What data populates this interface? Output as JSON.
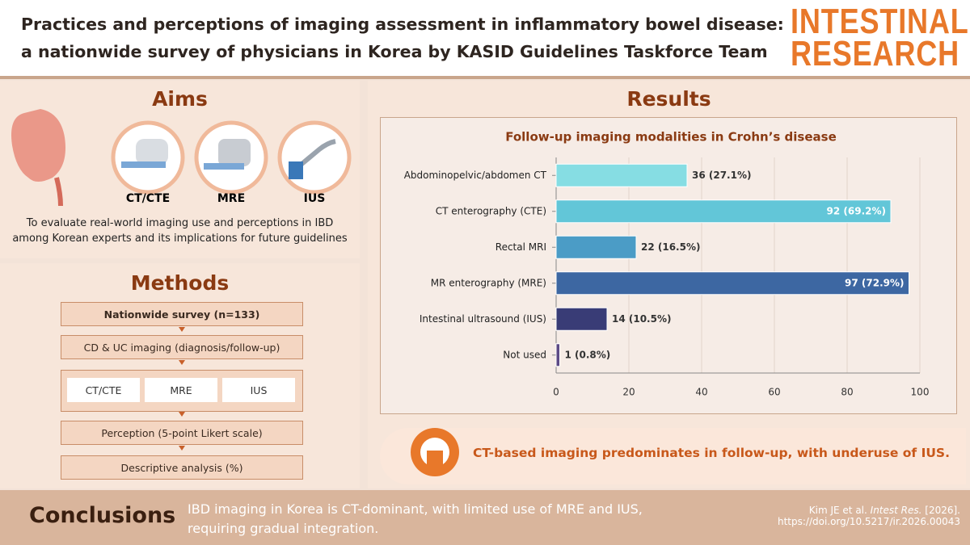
{
  "header": {
    "title_lines": [
      "Practices and perceptions of imaging assessment in inflammatory bowel disease:",
      "a nationwide survey of physicians in Korea by KASID Guidelines Taskforce Team"
    ],
    "journal_lines": [
      "INTESTINAL",
      "RESEARCH"
    ]
  },
  "aims": {
    "heading": "Aims",
    "icons": [
      "CT/CTE",
      "MRE",
      "IUS"
    ],
    "text_lines": [
      "To evaluate real-world imaging use and perceptions in IBD",
      "among Korean experts and its implications for future guidelines"
    ]
  },
  "methods": {
    "heading": "Methods",
    "steps": [
      "Nationwide survey (n=133)",
      "CD & UC imaging (diagnosis/follow-up)",
      "Perception (5-point Likert scale)",
      "Descriptive analysis (%)"
    ],
    "modalities": [
      "CT/CTE",
      "MRE",
      "IUS"
    ]
  },
  "results": {
    "heading": "Results",
    "finding": "CT-based imaging predominates in follow-up, with underuse of IUS."
  },
  "chart_data": {
    "type": "bar",
    "orientation": "horizontal",
    "title": "Follow-up imaging modalities in Crohn’s disease",
    "categories": [
      "Abdominopelvic/abdomen CT",
      "CT enterography (CTE)",
      "Rectal MRI",
      "MR enterography (MRE)",
      "Intestinal ultrasound (IUS)",
      "Not used"
    ],
    "values": [
      36,
      92,
      22,
      97,
      14,
      1
    ],
    "value_labels": [
      "36 (27.1%)",
      "92 (69.2%)",
      "22 (16.5%)",
      "97 (72.9%)",
      "14 (10.5%)",
      "1 (0.8%)"
    ],
    "colors": [
      "#86dde3",
      "#62c6d8",
      "#4b9cc6",
      "#3d67a2",
      "#393c76",
      "#5c4a86"
    ],
    "xlim": [
      0,
      100
    ],
    "xticks": [
      0,
      20,
      40,
      60,
      80,
      100
    ],
    "grid": true
  },
  "conclusions": {
    "heading": "Conclusions",
    "text_lines": [
      "IBD imaging in Korea is CT-dominant, with limited use of MRE and IUS,",
      "requiring gradual integration."
    ],
    "citation": {
      "authors": "Kim JE et al.",
      "journal": "Intest Res.",
      "year": "[2026].",
      "doi": "https://doi.org/10.5217/ir.2026.00043"
    }
  }
}
